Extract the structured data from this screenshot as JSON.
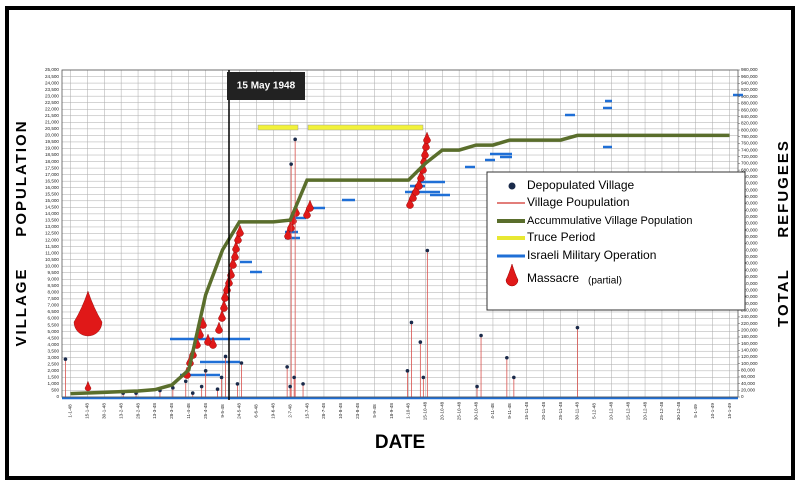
{
  "chart_data": {
    "type": "line",
    "annotation": "15 May 1948",
    "xlabel": "DATE",
    "ylabel": "VILLAGE     POPULATION",
    "y2label": "TOTAL     REFUGEES",
    "categories": [
      "1-1-48",
      "15-1-48",
      "30-1-48",
      "13-2-48",
      "28-2-48",
      "13-3-48",
      "28-3-48",
      "11-4-48",
      "25-4-48",
      "9-5-48",
      "24-5-48",
      "6-6-48",
      "19-6-48",
      "2-7-48",
      "15-7-48",
      "28-7-48",
      "10-8-48",
      "23-8-48",
      "5-9-48",
      "18-9-48",
      "1-10-48",
      "15-10-48",
      "20-10-48",
      "25-10-48",
      "30-10-48",
      "4-11-48",
      "9-11-48",
      "15-11-48",
      "20-11-48",
      "25-11-48",
      "30-11-48",
      "5-12-48",
      "10-12-48",
      "15-12-48",
      "20-12-48",
      "25-12-48",
      "30-12-48",
      "5-1-49",
      "10-1-49",
      "15-1-49"
    ],
    "series": [
      {
        "name": "Accummulative Village Population",
        "color": "#5a6e2c",
        "axis": "y2",
        "values": [
          10000,
          12000,
          14000,
          16000,
          18000,
          22000,
          36000,
          81000,
          306000,
          441000,
          525000,
          525000,
          525000,
          530000,
          650000,
          650000,
          650000,
          650000,
          650000,
          650000,
          650000,
          700000,
          740000,
          740000,
          755000,
          755000,
          770000,
          770000,
          770000,
          770000,
          784000,
          784000,
          784000,
          784000,
          784000,
          784000,
          784000,
          784000,
          784000,
          784000
        ]
      }
    ],
    "villages": {
      "name": "Depopulated Village",
      "color": "#1a2a4a",
      "line_color": "#d9534f",
      "x": [
        "1-1-48",
        "13-2-48",
        "28-2-48",
        "13-3-48",
        "28-3-48",
        "11-4-48",
        "11-4-48",
        "25-4-48",
        "25-4-48",
        "9-5-48",
        "9-5-48",
        "9-5-48",
        "24-5-48",
        "24-5-48",
        "2-7-48",
        "2-7-48",
        "2-7-48",
        "2-7-48",
        "2-7-48",
        "15-7-48",
        "1-10-48",
        "1-10-48",
        "15-10-48",
        "15-10-48",
        "15-10-48",
        "30-10-48",
        "30-10-48",
        "9-11-48",
        "9-11-48",
        "30-11-48"
      ],
      "values": [
        2900,
        300,
        300,
        500,
        700,
        1200,
        300,
        2000,
        800,
        3100,
        1500,
        600,
        2600,
        1000,
        19700,
        17800,
        2300,
        1500,
        800,
        1000,
        5700,
        2000,
        4200,
        11200,
        1500,
        4700,
        800,
        3000,
        1500,
        5300
      ]
    },
    "legend": [
      "Depopulated Village",
      "Village Poupulation",
      "Accummulative Village Population",
      "Truce Period",
      "Israeli Military Operation",
      "Massacre",
      "(partial)"
    ],
    "ylim": [
      0,
      25000
    ],
    "yticks": [
      0,
      500,
      {
        "value": 1000,
        "label": "1,000"
      },
      {
        "value": 1500,
        "label": "1,500"
      },
      {
        "value": 2000,
        "label": "2,000"
      },
      {
        "value": 2500,
        "label": "2,500"
      },
      {
        "value": 3000,
        "label": "3,000"
      },
      {
        "value": 3500,
        "label": "3,500"
      },
      {
        "value": 4000,
        "label": "4,000"
      },
      {
        "value": 4500,
        "label": "4,500"
      },
      {
        "value": 5000,
        "label": "5,000"
      },
      {
        "value": 5500,
        "label": "5,500"
      },
      {
        "value": 6000,
        "label": "6,000"
      },
      {
        "value": 6500,
        "label": "6,500"
      },
      {
        "value": 7000,
        "label": "7,000"
      },
      {
        "value": 7500,
        "label": "7,500"
      },
      {
        "value": 8000,
        "label": "8,000"
      },
      {
        "value": 8500,
        "label": "8,500"
      },
      {
        "value": 9000,
        "label": "9,000"
      },
      {
        "value": 9500,
        "label": "9,500"
      },
      {
        "value": 10000,
        "label": "10,000"
      },
      {
        "value": 10500,
        "label": "10,500"
      },
      {
        "value": 11000,
        "label": "11,000"
      },
      {
        "value": 11500,
        "label": "11,500"
      },
      {
        "value": 12000,
        "label": "12,000"
      },
      {
        "value": 12500,
        "label": "12,500"
      },
      {
        "value": 13000,
        "label": "13,000"
      },
      {
        "value": 13500,
        "label": "13,500"
      },
      {
        "value": 14000,
        "label": "14,000"
      },
      {
        "value": 14500,
        "label": "14,500"
      },
      {
        "value": 15000,
        "label": "15,000"
      },
      {
        "value": 15500,
        "label": "15,500"
      },
      {
        "value": 16000,
        "label": "16,000"
      },
      {
        "value": 16500,
        "label": "16,500"
      },
      {
        "value": 17000,
        "label": "17,000"
      },
      {
        "value": 17500,
        "label": "17,500"
      },
      {
        "value": 18000,
        "label": "18,000"
      },
      {
        "value": 18500,
        "label": "18,500"
      },
      {
        "value": 19000,
        "label": "19,000"
      },
      {
        "value": 19500,
        "label": "19,500"
      },
      {
        "value": 20000,
        "label": "20,000"
      },
      {
        "value": 20500,
        "label": "20,500"
      },
      {
        "value": 21000,
        "label": "21,000"
      },
      {
        "value": 21500,
        "label": "21,500"
      },
      {
        "value": 22000,
        "label": "22,000"
      },
      {
        "value": 22500,
        "label": "22,500"
      },
      {
        "value": 23000,
        "label": "23,000"
      },
      {
        "value": 23500,
        "label": "23,500"
      },
      {
        "value": 24000,
        "label": "24,000"
      },
      {
        "value": 24500,
        "label": "24,500"
      },
      {
        "value": 25000,
        "label": "25,000"
      }
    ],
    "y2lim": [
      0,
      980000
    ],
    "y2ticks": [
      0,
      {
        "value": 20000,
        "label": "20,000"
      },
      {
        "value": 40000,
        "label": "40,000"
      },
      {
        "value": 60000,
        "label": "60,000"
      },
      {
        "value": 80000,
        "label": "80,000"
      },
      {
        "value": 100000,
        "label": "100,000"
      },
      {
        "value": 120000,
        "label": "120,000"
      },
      {
        "value": 140000,
        "label": "140,000"
      },
      {
        "value": 160000,
        "label": "160,000"
      },
      {
        "value": 180000,
        "label": "180,000"
      },
      {
        "value": 200000,
        "label": "200,000"
      },
      {
        "value": 220000,
        "label": "220,000"
      },
      {
        "value": 240000,
        "label": "240,000"
      },
      {
        "value": 260000,
        "label": "260,000"
      },
      {
        "value": 280000,
        "label": "280,000"
      },
      {
        "value": 300000,
        "label": "300,000"
      },
      {
        "value": 320000,
        "label": "320,000"
      },
      {
        "value": 340000,
        "label": "340,000"
      },
      {
        "value": 360000,
        "label": "360,000"
      },
      {
        "value": 380000,
        "label": "380,000"
      },
      {
        "value": 400000,
        "label": "400,000"
      },
      {
        "value": 420000,
        "label": "420,000"
      },
      {
        "value": 440000,
        "label": "440,000"
      },
      {
        "value": 460000,
        "label": "460,000"
      },
      {
        "value": 480000,
        "label": "480,000"
      },
      {
        "value": 500000,
        "label": "500,000"
      },
      {
        "value": 520000,
        "label": "520,000"
      },
      {
        "value": 540000,
        "label": "540,000"
      },
      {
        "value": 560000,
        "label": "560,000"
      },
      {
        "value": 580000,
        "label": "580,000"
      },
      {
        "value": 600000,
        "label": "600,000"
      },
      {
        "value": 620000,
        "label": "620,000"
      },
      {
        "value": 640000,
        "label": "640,000"
      },
      {
        "value": 660000,
        "label": "660,000"
      },
      {
        "value": 680000,
        "label": "680,000"
      },
      {
        "value": 700000,
        "label": "700,000"
      },
      {
        "value": 720000,
        "label": "720,000"
      },
      {
        "value": 740000,
        "label": "740,000"
      },
      {
        "value": 760000,
        "label": "760,000"
      },
      {
        "value": 780000,
        "label": "780,000"
      },
      {
        "value": 800000,
        "label": "800,000"
      },
      {
        "value": 820000,
        "label": "820,000"
      },
      {
        "value": 840000,
        "label": "840,000"
      },
      {
        "value": 860000,
        "label": "860,000"
      },
      {
        "value": 880000,
        "label": "880,000"
      },
      {
        "value": 900000,
        "label": "900,000"
      },
      {
        "value": 920000,
        "label": "920,000"
      },
      {
        "value": 940000,
        "label": "940,000"
      },
      {
        "value": 960000,
        "label": "960,000"
      },
      {
        "value": 980000,
        "label": "980,000"
      }
    ],
    "grid": true
  }
}
